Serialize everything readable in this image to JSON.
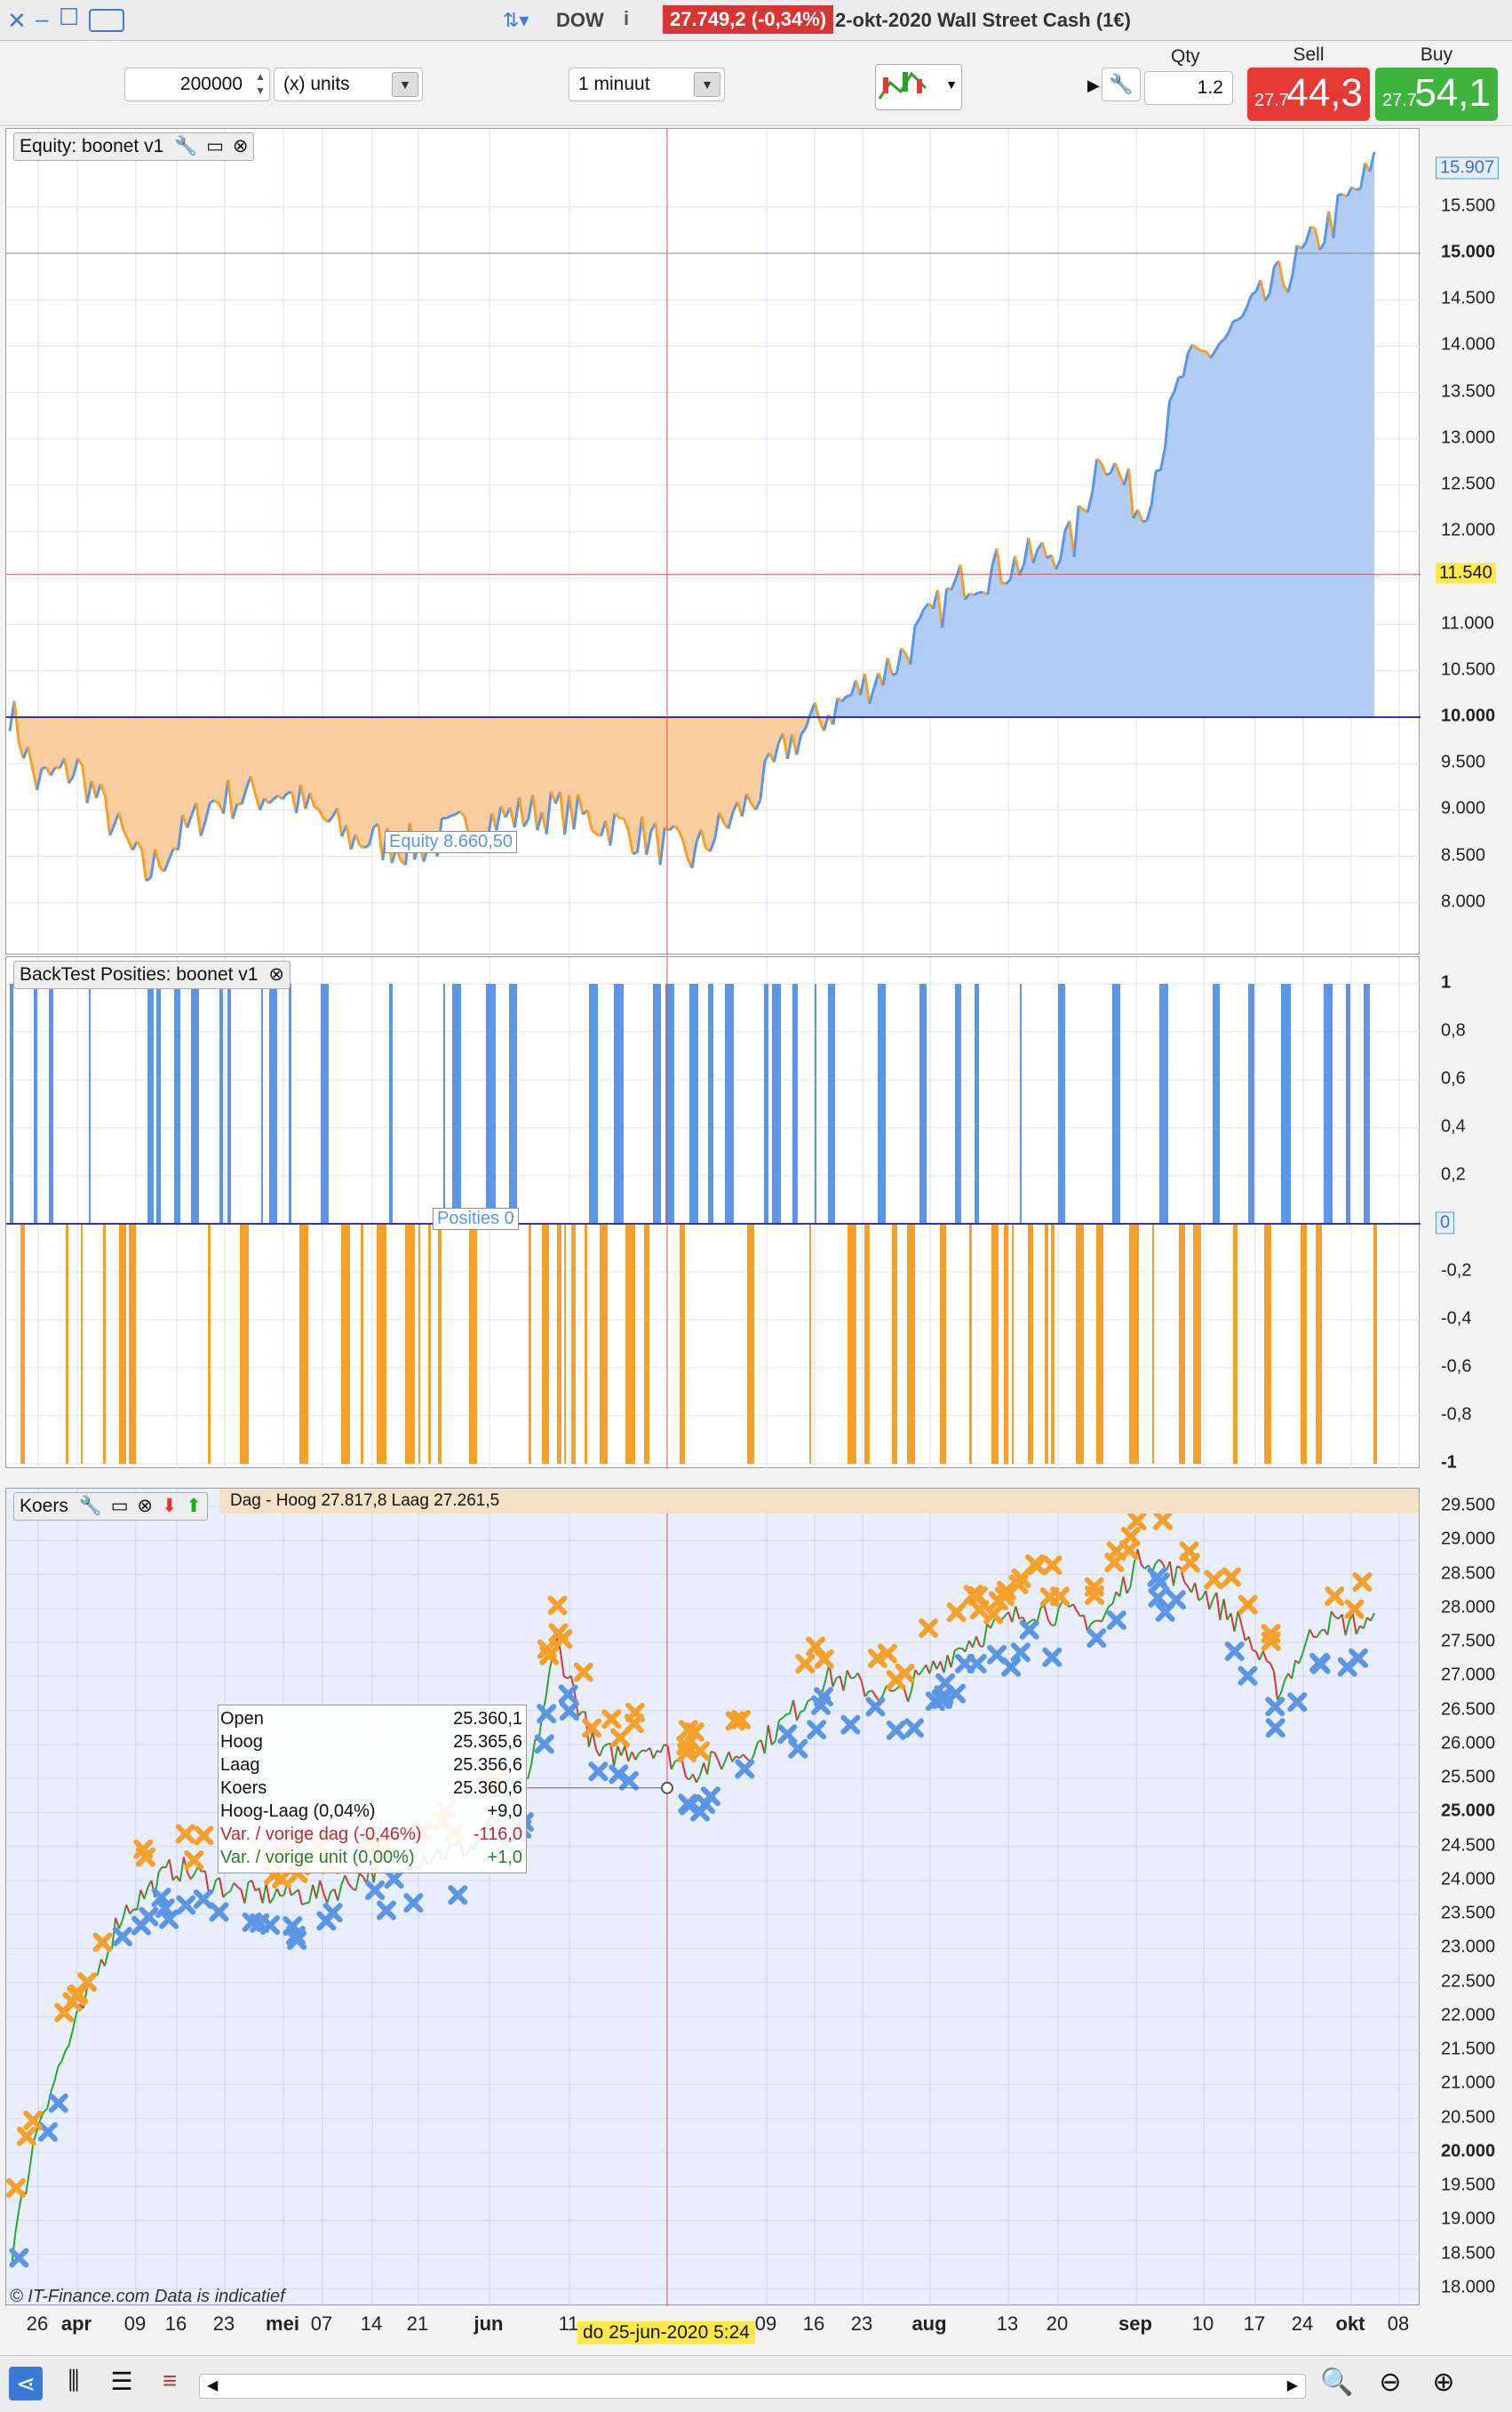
{
  "titlebar": {
    "ticker": "DOW",
    "price_change": "27.749,2 (-0,34%)",
    "date_instrument": "2-okt-2020  Wall Street Cash (1€)"
  },
  "toolbar": {
    "amount": "200000",
    "unit_type": "(x) units",
    "timeframe": "1 minuut",
    "qty_label": "Qty",
    "qty_value": "1.2",
    "sell_label": "Sell",
    "sell_prefix": "27.7",
    "sell_big": "44,3",
    "buy_label": "Buy",
    "buy_prefix": "27.7",
    "buy_big": "54,1",
    "sell_color": "#e53935",
    "buy_color": "#3fb53f"
  },
  "equity_panel": {
    "title": "Equity: boonet v1",
    "legend": "Equity  8.660,50",
    "current_label": "15.907",
    "crosshair_label": "11.540",
    "ticks": [
      "15.907",
      "15.500",
      "15.000",
      "14.500",
      "14.000",
      "13.500",
      "13.000",
      "12.500",
      "12.000",
      "11.500",
      "11.000",
      "10.500",
      "10.000",
      "9.500",
      "9.000",
      "8.500",
      "8.000"
    ],
    "bold_ticks": [
      "15.000",
      "10.000"
    ]
  },
  "positions_panel": {
    "title": "BackTest Posities: boonet v1",
    "legend": "Posities  0",
    "zero_label": "0",
    "ticks": [
      "1",
      "0,8",
      "0,6",
      "0,4",
      "0,2",
      "0",
      "-0,2",
      "-0,4",
      "-0,6",
      "-0,8",
      "-1"
    ],
    "bold_ticks": [
      "1",
      "-1"
    ]
  },
  "price_panel": {
    "title": "Koers",
    "header_overlay": "Dag - Hoog 27.817,8 Laag 27.261,5",
    "ticks": [
      "29.500",
      "29.000",
      "28.500",
      "28.000",
      "27.500",
      "27.000",
      "26.500",
      "26.000",
      "25.500",
      "25.000",
      "24.500",
      "24.000",
      "23.500",
      "23.000",
      "22.500",
      "22.000",
      "21.500",
      "21.000",
      "20.500",
      "20.000",
      "19.500",
      "19.000",
      "18.500",
      "18.000"
    ],
    "bold_ticks": [
      "25.000",
      "20.000"
    ],
    "watermark": "© IT-Finance.com  Data is indicatief",
    "tooltip": [
      {
        "label": "Open",
        "value": "25.360,1",
        "color": "#111"
      },
      {
        "label": "Hoog",
        "value": "25.365,6",
        "color": "#111"
      },
      {
        "label": "Laag",
        "value": "25.356,6",
        "color": "#111"
      },
      {
        "label": "Koers",
        "value": "25.360,6",
        "color": "#111"
      },
      {
        "label": "Hoog-Laag (0,04%)",
        "value": "+9,0",
        "color": "#111"
      },
      {
        "label": "Var. / vorige dag (-0,46%)",
        "value": "-116,0",
        "color": "#c62828"
      },
      {
        "label": "Var. / vorige unit (0,00%)",
        "value": "+1,0",
        "color": "#2e7d32"
      }
    ]
  },
  "xaxis": {
    "labels": [
      {
        "t": "26",
        "b": false
      },
      {
        "t": "apr",
        "b": true
      },
      {
        "t": "09",
        "b": false
      },
      {
        "t": "16",
        "b": false
      },
      {
        "t": "23",
        "b": false
      },
      {
        "t": "mei",
        "b": true
      },
      {
        "t": "07",
        "b": false
      },
      {
        "t": "14",
        "b": false
      },
      {
        "t": "21",
        "b": false
      },
      {
        "t": "jun",
        "b": true
      },
      {
        "t": "11",
        "b": false
      },
      {
        "t": "09",
        "b": false
      },
      {
        "t": "16",
        "b": false
      },
      {
        "t": "23",
        "b": false
      },
      {
        "t": "aug",
        "b": true
      },
      {
        "t": "13",
        "b": false
      },
      {
        "t": "20",
        "b": false
      },
      {
        "t": "sep",
        "b": true
      },
      {
        "t": "10",
        "b": false
      },
      {
        "t": "17",
        "b": false
      },
      {
        "t": "24",
        "b": false
      },
      {
        "t": "okt",
        "b": true
      },
      {
        "t": "08",
        "b": false
      }
    ],
    "cursor_label": "do 25-jun-2020 5:24"
  },
  "colors": {
    "equity_line": "#5b95e6",
    "equity_down": "#f5a02a",
    "above_fill": "#a9c8f5",
    "below_fill": "#f9c895",
    "long_bar": "#5b95e6",
    "short_bar": "#f5a02a",
    "crosshair": "#e05050",
    "baseline": "#3333aa"
  }
}
